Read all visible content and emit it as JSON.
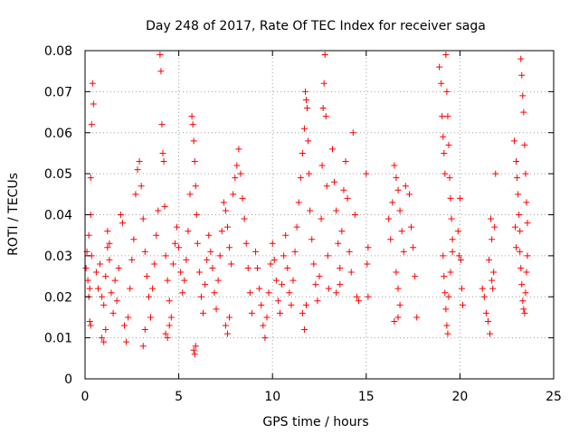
{
  "chart_data": {
    "type": "scatter",
    "title": "Day 248 of 2017, Rate Of TEC Index for receiver saga",
    "xlabel": "GPS time / hours",
    "ylabel": "ROTI / TECUs",
    "xlim": [
      0,
      25
    ],
    "ylim": [
      0,
      0.08
    ],
    "xticks": [
      0,
      5,
      10,
      15,
      20,
      25
    ],
    "xtick_labels": [
      "0",
      "5",
      "10",
      "15",
      "20",
      "25"
    ],
    "yticks": [
      0,
      0.01,
      0.02,
      0.03,
      0.04,
      0.05,
      0.06,
      0.07,
      0.08
    ],
    "ytick_labels": [
      "0",
      "0.01",
      "0.02",
      "0.03",
      "0.04",
      "0.05",
      "0.06",
      "0.07",
      "0.08"
    ],
    "grid": true,
    "marker": "+",
    "color": "#ff0000",
    "series": [
      {
        "name": "ROTI",
        "points": [
          [
            0.05,
            0.027
          ],
          [
            0.1,
            0.031
          ],
          [
            0.15,
            0.024
          ],
          [
            0.2,
            0.035
          ],
          [
            0.25,
            0.022
          ],
          [
            0.3,
            0.049
          ],
          [
            0.35,
            0.062
          ],
          [
            0.4,
            0.072
          ],
          [
            0.45,
            0.067
          ],
          [
            0.3,
            0.04
          ],
          [
            0.35,
            0.03
          ],
          [
            0.25,
            0.014
          ],
          [
            0.3,
            0.013
          ],
          [
            0.2,
            0.02
          ],
          [
            0.6,
            0.026
          ],
          [
            0.7,
            0.022
          ],
          [
            0.8,
            0.028
          ],
          [
            0.9,
            0.02
          ],
          [
            1.0,
            0.018
          ],
          [
            1.1,
            0.025
          ],
          [
            1.2,
            0.032
          ],
          [
            1.3,
            0.029
          ],
          [
            1.4,
            0.021
          ],
          [
            1.5,
            0.016
          ],
          [
            0.9,
            0.01
          ],
          [
            1.0,
            0.009
          ],
          [
            1.1,
            0.012
          ],
          [
            1.2,
            0.036
          ],
          [
            1.3,
            0.033
          ],
          [
            1.6,
            0.024
          ],
          [
            1.7,
            0.019
          ],
          [
            1.8,
            0.027
          ],
          [
            1.9,
            0.04
          ],
          [
            2.0,
            0.038
          ],
          [
            2.1,
            0.013
          ],
          [
            2.2,
            0.009
          ],
          [
            2.3,
            0.015
          ],
          [
            2.4,
            0.022
          ],
          [
            2.5,
            0.029
          ],
          [
            2.6,
            0.034
          ],
          [
            2.7,
            0.045
          ],
          [
            2.8,
            0.051
          ],
          [
            2.9,
            0.053
          ],
          [
            3.0,
            0.047
          ],
          [
            3.1,
            0.039
          ],
          [
            3.2,
            0.031
          ],
          [
            3.3,
            0.025
          ],
          [
            3.4,
            0.02
          ],
          [
            3.5,
            0.015
          ],
          [
            3.1,
            0.008
          ],
          [
            3.2,
            0.012
          ],
          [
            3.6,
            0.022
          ],
          [
            3.7,
            0.028
          ],
          [
            3.8,
            0.035
          ],
          [
            3.9,
            0.041
          ],
          [
            4.0,
            0.079
          ],
          [
            4.05,
            0.075
          ],
          [
            4.1,
            0.062
          ],
          [
            4.15,
            0.055
          ],
          [
            4.2,
            0.053
          ],
          [
            4.25,
            0.042
          ],
          [
            4.3,
            0.03
          ],
          [
            4.4,
            0.024
          ],
          [
            4.5,
            0.019
          ],
          [
            4.6,
            0.015
          ],
          [
            4.7,
            0.028
          ],
          [
            4.8,
            0.033
          ],
          [
            4.9,
            0.037
          ],
          [
            5.0,
            0.032
          ],
          [
            5.1,
            0.026
          ],
          [
            5.2,
            0.021
          ],
          [
            4.3,
            0.011
          ],
          [
            4.4,
            0.01
          ],
          [
            4.5,
            0.013
          ],
          [
            5.3,
            0.024
          ],
          [
            5.4,
            0.029
          ],
          [
            5.5,
            0.036
          ],
          [
            5.6,
            0.045
          ],
          [
            5.7,
            0.064
          ],
          [
            5.75,
            0.062
          ],
          [
            5.8,
            0.058
          ],
          [
            5.85,
            0.053
          ],
          [
            5.9,
            0.047
          ],
          [
            5.95,
            0.04
          ],
          [
            6.0,
            0.033
          ],
          [
            5.8,
            0.007
          ],
          [
            5.85,
            0.006
          ],
          [
            5.9,
            0.008
          ],
          [
            6.1,
            0.026
          ],
          [
            6.2,
            0.02
          ],
          [
            6.3,
            0.016
          ],
          [
            6.4,
            0.023
          ],
          [
            6.5,
            0.029
          ],
          [
            6.6,
            0.035
          ],
          [
            6.7,
            0.031
          ],
          [
            6.8,
            0.027
          ],
          [
            6.9,
            0.021
          ],
          [
            7.0,
            0.017
          ],
          [
            7.1,
            0.024
          ],
          [
            7.2,
            0.03
          ],
          [
            7.3,
            0.036
          ],
          [
            7.4,
            0.043
          ],
          [
            7.5,
            0.041
          ],
          [
            7.6,
            0.037
          ],
          [
            7.7,
            0.032
          ],
          [
            7.8,
            0.028
          ],
          [
            7.9,
            0.045
          ],
          [
            8.0,
            0.049
          ],
          [
            8.1,
            0.052
          ],
          [
            8.2,
            0.056
          ],
          [
            8.3,
            0.05
          ],
          [
            8.4,
            0.044
          ],
          [
            8.5,
            0.039
          ],
          [
            8.6,
            0.033
          ],
          [
            8.7,
            0.027
          ],
          [
            8.8,
            0.021
          ],
          [
            8.9,
            0.016
          ],
          [
            7.5,
            0.013
          ],
          [
            7.6,
            0.011
          ],
          [
            7.7,
            0.015
          ],
          [
            9.1,
            0.031
          ],
          [
            9.2,
            0.027
          ],
          [
            9.3,
            0.022
          ],
          [
            9.4,
            0.018
          ],
          [
            9.5,
            0.013
          ],
          [
            9.6,
            0.01
          ],
          [
            9.7,
            0.015
          ],
          [
            9.8,
            0.021
          ],
          [
            9.9,
            0.028
          ],
          [
            10.0,
            0.033
          ],
          [
            10.1,
            0.029
          ],
          [
            10.2,
            0.024
          ],
          [
            10.3,
            0.019
          ],
          [
            10.4,
            0.016
          ],
          [
            10.5,
            0.023
          ],
          [
            10.6,
            0.03
          ],
          [
            10.7,
            0.035
          ],
          [
            10.8,
            0.027
          ],
          [
            10.9,
            0.021
          ],
          [
            11.0,
            0.018
          ],
          [
            11.1,
            0.024
          ],
          [
            11.2,
            0.031
          ],
          [
            11.3,
            0.037
          ],
          [
            11.4,
            0.043
          ],
          [
            11.5,
            0.049
          ],
          [
            11.6,
            0.055
          ],
          [
            11.7,
            0.061
          ],
          [
            11.75,
            0.07
          ],
          [
            11.8,
            0.068
          ],
          [
            11.85,
            0.066
          ],
          [
            11.9,
            0.058
          ],
          [
            11.95,
            0.05
          ],
          [
            12.0,
            0.041
          ],
          [
            12.1,
            0.034
          ],
          [
            12.2,
            0.028
          ],
          [
            12.3,
            0.023
          ],
          [
            12.4,
            0.019
          ],
          [
            12.5,
            0.025
          ],
          [
            12.6,
            0.039
          ],
          [
            12.65,
            0.052
          ],
          [
            12.7,
            0.066
          ],
          [
            12.75,
            0.072
          ],
          [
            12.8,
            0.079
          ],
          [
            12.85,
            0.064
          ],
          [
            12.9,
            0.047
          ],
          [
            12.95,
            0.03
          ],
          [
            13.0,
            0.022
          ],
          [
            11.6,
            0.016
          ],
          [
            11.7,
            0.012
          ],
          [
            11.8,
            0.018
          ],
          [
            13.2,
            0.056
          ],
          [
            13.3,
            0.048
          ],
          [
            13.4,
            0.041
          ],
          [
            13.5,
            0.033
          ],
          [
            13.6,
            0.027
          ],
          [
            13.7,
            0.036
          ],
          [
            13.8,
            0.046
          ],
          [
            13.9,
            0.053
          ],
          [
            14.0,
            0.044
          ],
          [
            14.1,
            0.031
          ],
          [
            14.2,
            0.026
          ],
          [
            14.3,
            0.06
          ],
          [
            14.4,
            0.04
          ],
          [
            14.5,
            0.02
          ],
          [
            14.6,
            0.019
          ],
          [
            13.4,
            0.021
          ],
          [
            13.6,
            0.023
          ],
          [
            15.0,
            0.05
          ],
          [
            15.1,
            0.032
          ],
          [
            15.05,
            0.028
          ],
          [
            15.1,
            0.02
          ],
          [
            16.2,
            0.039
          ],
          [
            16.3,
            0.034
          ],
          [
            16.4,
            0.043
          ],
          [
            16.5,
            0.052
          ],
          [
            16.6,
            0.049
          ],
          [
            16.7,
            0.046
          ],
          [
            16.8,
            0.041
          ],
          [
            16.9,
            0.036
          ],
          [
            17.0,
            0.031
          ],
          [
            16.6,
            0.026
          ],
          [
            16.7,
            0.022
          ],
          [
            16.8,
            0.018
          ],
          [
            16.7,
            0.015
          ],
          [
            16.5,
            0.014
          ],
          [
            17.1,
            0.047
          ],
          [
            17.3,
            0.045
          ],
          [
            17.4,
            0.037
          ],
          [
            17.5,
            0.032
          ],
          [
            17.6,
            0.025
          ],
          [
            17.7,
            0.015
          ],
          [
            18.9,
            0.076
          ],
          [
            19.0,
            0.072
          ],
          [
            19.05,
            0.064
          ],
          [
            19.1,
            0.059
          ],
          [
            19.15,
            0.055
          ],
          [
            19.2,
            0.05
          ],
          [
            19.25,
            0.079
          ],
          [
            19.3,
            0.07
          ],
          [
            19.35,
            0.064
          ],
          [
            19.4,
            0.057
          ],
          [
            19.45,
            0.049
          ],
          [
            19.5,
            0.044
          ],
          [
            19.55,
            0.039
          ],
          [
            19.6,
            0.034
          ],
          [
            19.1,
            0.03
          ],
          [
            19.15,
            0.025
          ],
          [
            19.2,
            0.021
          ],
          [
            19.25,
            0.017
          ],
          [
            19.3,
            0.013
          ],
          [
            19.35,
            0.011
          ],
          [
            19.4,
            0.02
          ],
          [
            19.5,
            0.026
          ],
          [
            19.6,
            0.031
          ],
          [
            19.9,
            0.036
          ],
          [
            20.0,
            0.044
          ],
          [
            20.05,
            0.029
          ],
          [
            20.1,
            0.022
          ],
          [
            20.15,
            0.018
          ],
          [
            19.95,
            0.03
          ],
          [
            21.2,
            0.022
          ],
          [
            21.3,
            0.02
          ],
          [
            21.4,
            0.016
          ],
          [
            21.5,
            0.014
          ],
          [
            21.6,
            0.011
          ],
          [
            21.7,
            0.024
          ],
          [
            21.75,
            0.022
          ],
          [
            21.8,
            0.026
          ],
          [
            21.85,
            0.037
          ],
          [
            21.9,
            0.05
          ],
          [
            21.65,
            0.039
          ],
          [
            21.7,
            0.034
          ],
          [
            21.55,
            0.029
          ],
          [
            22.9,
            0.058
          ],
          [
            23.0,
            0.053
          ],
          [
            23.05,
            0.049
          ],
          [
            23.1,
            0.045
          ],
          [
            23.15,
            0.04
          ],
          [
            23.2,
            0.036
          ],
          [
            23.25,
            0.078
          ],
          [
            23.3,
            0.074
          ],
          [
            23.35,
            0.069
          ],
          [
            23.4,
            0.065
          ],
          [
            23.45,
            0.057
          ],
          [
            23.5,
            0.05
          ],
          [
            23.55,
            0.043
          ],
          [
            23.6,
            0.038
          ],
          [
            23.2,
            0.031
          ],
          [
            23.25,
            0.027
          ],
          [
            23.3,
            0.023
          ],
          [
            23.35,
            0.019
          ],
          [
            23.4,
            0.017
          ],
          [
            23.45,
            0.016
          ],
          [
            23.5,
            0.021
          ],
          [
            23.55,
            0.026
          ],
          [
            23.6,
            0.03
          ],
          [
            22.95,
            0.037
          ],
          [
            23.0,
            0.032
          ]
        ]
      }
    ]
  }
}
